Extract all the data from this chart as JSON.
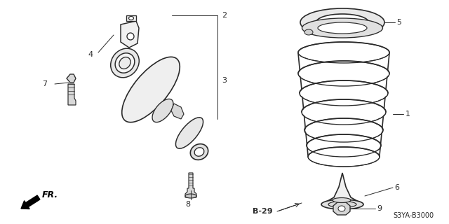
{
  "background_color": "#ffffff",
  "fig_width": 6.4,
  "fig_height": 3.2,
  "dpi": 100,
  "line_color": "#2a2a2a",
  "line_width": 1.2,
  "label_fontsize": 8,
  "footer_left": "FR.",
  "footer_code": "B-29",
  "part_code": "S3YA-B3000"
}
